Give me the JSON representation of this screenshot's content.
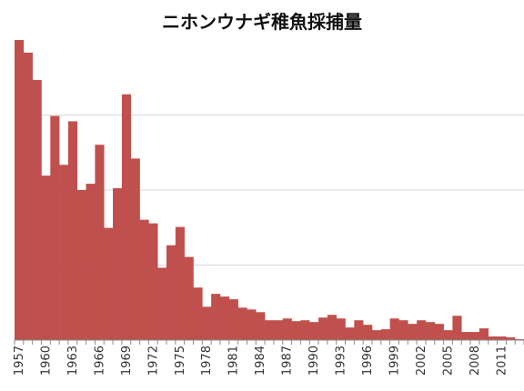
{
  "chart_data": {
    "type": "bar",
    "title": "ニホンウナギ稚魚採捕量",
    "xlabel": "",
    "ylabel": "",
    "ylim": [
      0,
      100
    ],
    "grid": true,
    "legend": "none",
    "bar_color": "#c0504d",
    "grid_color": "#d9d9d9",
    "axis_color": "#8a8a8a",
    "categories": [
      "1957",
      "1958",
      "1959",
      "1960",
      "1961",
      "1962",
      "1963",
      "1964",
      "1965",
      "1966",
      "1967",
      "1968",
      "1969",
      "1970",
      "1971",
      "1972",
      "1973",
      "1974",
      "1975",
      "1976",
      "1977",
      "1978",
      "1979",
      "1980",
      "1981",
      "1982",
      "1983",
      "1984",
      "1985",
      "1986",
      "1987",
      "1988",
      "1989",
      "1990",
      "1991",
      "1992",
      "1993",
      "1994",
      "1995",
      "1996",
      "1997",
      "1998",
      "1999",
      "2000",
      "2001",
      "2002",
      "2003",
      "2004",
      "2005",
      "2006",
      "2007",
      "2008",
      "2009",
      "2010",
      "2011",
      "2012",
      "2013"
    ],
    "tick_labels": [
      "1957",
      "1960",
      "1963",
      "1966",
      "1969",
      "1972",
      "1975",
      "1978",
      "1981",
      "1984",
      "1987",
      "1990",
      "1993",
      "1996",
      "1999",
      "2002",
      "2005",
      "2008",
      "2011"
    ],
    "values": [
      100.0,
      95.8,
      86.7,
      54.8,
      74.7,
      58.4,
      72.9,
      50.0,
      52.1,
      65.1,
      37.4,
      50.6,
      81.9,
      60.5,
      40.1,
      38.9,
      24.1,
      31.6,
      37.7,
      27.7,
      17.5,
      11.1,
      15.4,
      14.5,
      13.6,
      10.8,
      10.2,
      9.3,
      6.6,
      6.6,
      7.2,
      6.3,
      6.6,
      6.0,
      7.5,
      8.4,
      7.2,
      4.2,
      6.6,
      5.1,
      3.3,
      3.6,
      7.2,
      6.6,
      5.4,
      6.6,
      6.0,
      5.4,
      3.3,
      8.1,
      2.7,
      2.7,
      3.9,
      1.2,
      1.2,
      0.9,
      0.3
    ]
  }
}
